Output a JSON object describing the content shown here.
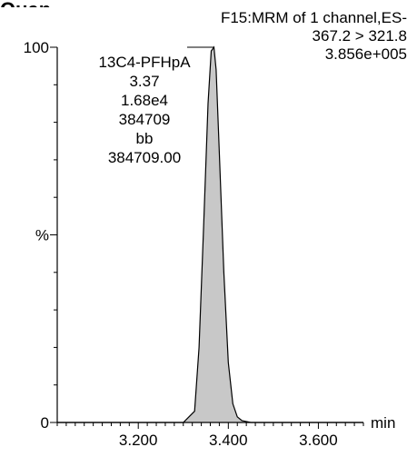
{
  "header": {
    "title_fragment": "Quan",
    "trace_lines": [
      "F15:MRM of 1 channel,ES-",
      "367.2 > 321.8",
      "3.856e+005"
    ]
  },
  "peak_annotation": {
    "lines": [
      "13C4-PFHpA",
      "3.37",
      "1.68e4",
      "384709",
      "bb",
      "384709.00"
    ]
  },
  "colors": {
    "peak_fill": "#c8c8c8",
    "line": "#000000"
  },
  "chart_data": {
    "type": "area",
    "xlabel": "min",
    "ylabel": "%",
    "xlim": [
      3.02,
      3.7
    ],
    "ylim": [
      0,
      100
    ],
    "x_ticks": [
      "3.200",
      "3.400",
      "3.600"
    ],
    "x_tick_values": [
      3.2,
      3.4,
      3.6
    ],
    "y_ticks": [
      "0",
      "%",
      "100"
    ],
    "y_tick_values": [
      0,
      50,
      100
    ],
    "grid": false,
    "series": [
      {
        "x": [
          3.02,
          3.3,
          3.325,
          3.335,
          3.345,
          3.355,
          3.362,
          3.368,
          3.373,
          3.38,
          3.39,
          3.4,
          3.41,
          3.42,
          3.43,
          3.45,
          3.7
        ],
        "y": [
          0,
          0,
          3,
          20,
          52,
          85,
          99,
          100,
          94,
          72,
          40,
          16,
          5,
          1.5,
          0.5,
          0,
          0
        ]
      }
    ]
  }
}
